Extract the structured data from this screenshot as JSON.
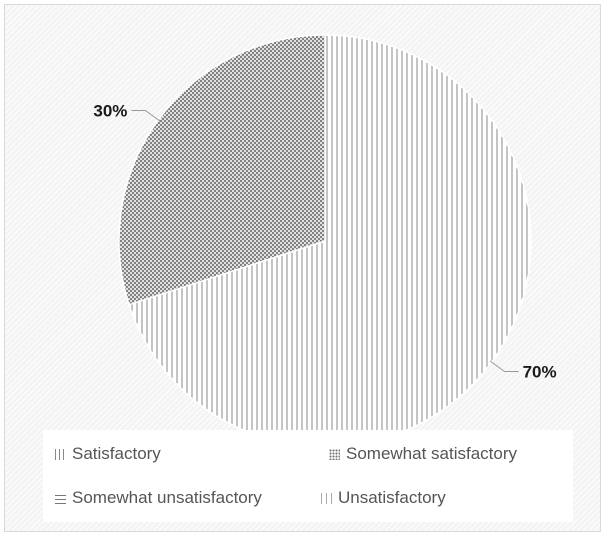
{
  "chart_data": {
    "type": "pie",
    "title": "",
    "slices": [
      {
        "label": "Satisfactory",
        "value": 70,
        "display": "70%",
        "pattern": "vertical-lines"
      },
      {
        "label": "Somewhat satisfactory",
        "value": 30,
        "display": "30%",
        "pattern": "crosshatch"
      },
      {
        "label": "Somewhat unsatisfactory",
        "value": 0,
        "display": "",
        "pattern": "dashes"
      },
      {
        "label": "Unsatisfactory",
        "value": 0,
        "display": "",
        "pattern": "vertical-lines-light"
      }
    ],
    "legend_position": "bottom"
  },
  "legend": {
    "items": [
      {
        "label": "Satisfactory"
      },
      {
        "label": "Somewhat satisfactory"
      },
      {
        "label": "Somewhat unsatisfactory"
      },
      {
        "label": "Unsatisfactory"
      }
    ]
  },
  "colors": {
    "frame_border": "#d9d9d9",
    "pattern_ink": "#8a8a8a",
    "label_text": "#1a1a1a",
    "legend_text": "#555555"
  }
}
